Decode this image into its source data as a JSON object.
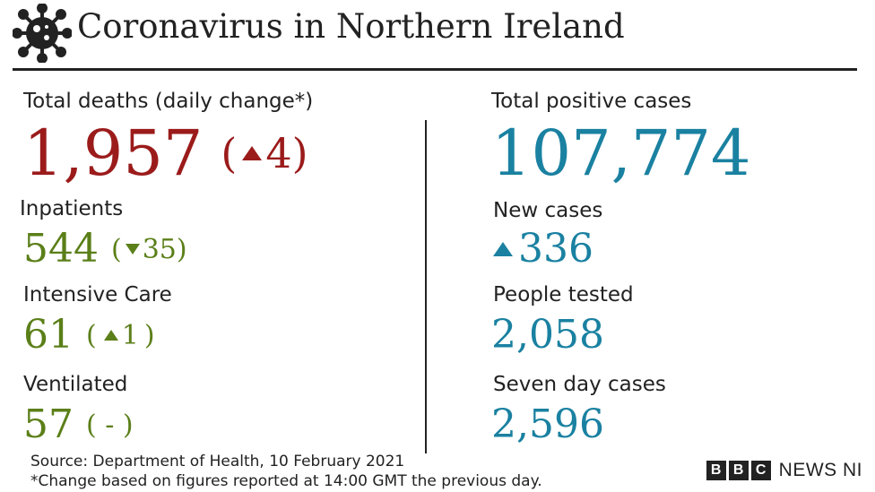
{
  "header": {
    "title": "Coronavirus in Northern Ireland",
    "icon": "virus-icon"
  },
  "left": {
    "deaths": {
      "label": "Total deaths (daily change*)",
      "value": "1,957",
      "open": "(",
      "change": "4",
      "close": ")",
      "direction": "up",
      "color": "#9b1b1b"
    },
    "inpatients": {
      "label": "Inpatients",
      "value": "544",
      "open": "(",
      "change": "35",
      "close": ")",
      "direction": "down",
      "color": "#5b7f19"
    },
    "icu": {
      "label": "Intensive Care",
      "value": "61",
      "open": "(",
      "change": "1",
      "close": ")",
      "direction": "up",
      "color": "#5b7f19"
    },
    "ventilated": {
      "label": "Ventilated",
      "value": "57",
      "change_text": "( - )",
      "color": "#5b7f19"
    }
  },
  "right": {
    "positive": {
      "label": "Total positive cases",
      "value": "107,774",
      "color": "#1a81a1"
    },
    "new_cases": {
      "label": "New cases",
      "value": "336",
      "direction": "up"
    },
    "tested": {
      "label": "People tested",
      "value": "2,058"
    },
    "seven_day": {
      "label": "Seven day cases",
      "value": "2,596"
    }
  },
  "footer": {
    "source": "Source: Department of Health, 10 February 2021",
    "note": "*Change based on figures reported at 14:00 GMT the previous day.",
    "logo_letters": [
      "B",
      "B",
      "C"
    ],
    "logo_text": "NEWS NI"
  }
}
